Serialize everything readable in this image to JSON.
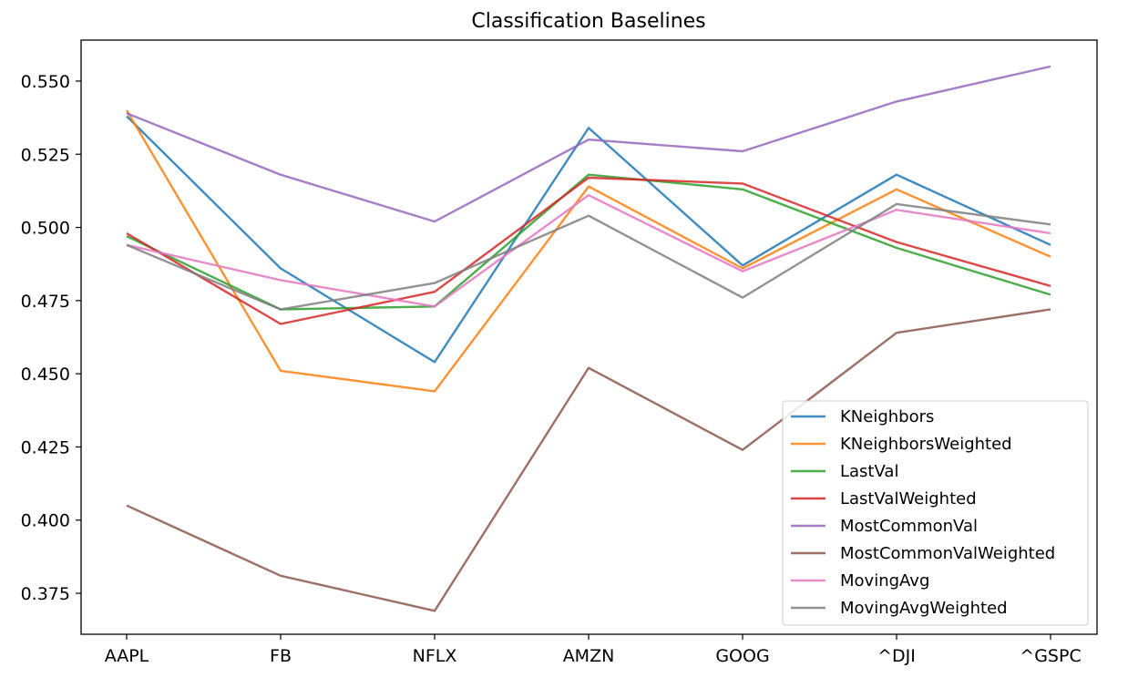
{
  "chart_data": {
    "type": "line",
    "title": "Classification Baselines",
    "xlabel": "",
    "ylabel": "",
    "categories": [
      "AAPL",
      "FB",
      "NFLX",
      "AMZN",
      "GOOG",
      "^DJI",
      "^GSPC"
    ],
    "ylim": [
      0.361,
      0.564
    ],
    "yticks": [
      "0.375",
      "0.400",
      "0.425",
      "0.450",
      "0.475",
      "0.500",
      "0.525",
      "0.550"
    ],
    "legend_position": "lower-right",
    "grid": false,
    "series": [
      {
        "name": "KNeighbors",
        "color": "#1f77b4",
        "values": [
          0.538,
          0.486,
          0.454,
          0.534,
          0.487,
          0.518,
          0.494
        ]
      },
      {
        "name": "KNeighborsWeighted",
        "color": "#ff7f0e",
        "values": [
          0.54,
          0.451,
          0.444,
          0.514,
          0.486,
          0.513,
          0.49
        ]
      },
      {
        "name": "LastVal",
        "color": "#2ca02c",
        "values": [
          0.497,
          0.472,
          0.473,
          0.518,
          0.513,
          0.493,
          0.477
        ]
      },
      {
        "name": "LastValWeighted",
        "color": "#d62728",
        "values": [
          0.498,
          0.467,
          0.478,
          0.517,
          0.515,
          0.495,
          0.48
        ]
      },
      {
        "name": "MostCommonVal",
        "color": "#9467bd",
        "values": [
          0.539,
          0.518,
          0.502,
          0.53,
          0.526,
          0.543,
          0.555
        ]
      },
      {
        "name": "MostCommonValWeighted",
        "color": "#8c564b",
        "values": [
          0.405,
          0.381,
          0.369,
          0.452,
          0.424,
          0.464,
          0.472
        ]
      },
      {
        "name": "MovingAvg",
        "color": "#e377c2",
        "values": [
          0.494,
          0.482,
          0.473,
          0.511,
          0.485,
          0.506,
          0.498
        ]
      },
      {
        "name": "MovingAvgWeighted",
        "color": "#7f7f7f",
        "values": [
          0.494,
          0.472,
          0.481,
          0.504,
          0.476,
          0.508,
          0.501
        ]
      }
    ]
  }
}
